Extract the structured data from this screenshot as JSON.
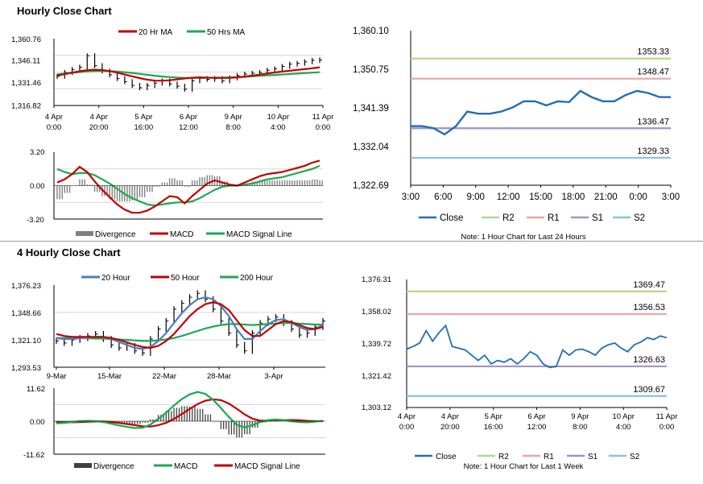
{
  "sections": [
    {
      "title": "Hourly Close Chart"
    },
    {
      "title": "4 Hourly Close Chart"
    }
  ],
  "chart_data": [
    {
      "id": "hourly_price",
      "type": "line",
      "title": "",
      "ylim": [
        1316.82,
        1360.76
      ],
      "yticks": [
        "1,360.76",
        "1,346.11",
        "1,331.46",
        "1,316.82"
      ],
      "xticks": [
        [
          "4 Apr",
          "0:00"
        ],
        [
          "4 Apr",
          "20:00"
        ],
        [
          "5 Apr",
          "16:00"
        ],
        [
          "6 Apr",
          "12:00"
        ],
        [
          "9 Apr",
          "8:00"
        ],
        [
          "10 Apr",
          "4:00"
        ],
        [
          "11 Apr",
          "0:00"
        ]
      ],
      "legend": [
        "20 Hr MA",
        "50 Hrs MA"
      ],
      "colors": {
        "price": "#000000",
        "ma20": "#c00000",
        "ma50": "#1aaa55"
      },
      "series": [
        {
          "name": "20 Hr MA",
          "values": [
            1336.5,
            1337.4,
            1338.4,
            1339.3,
            1340.0,
            1340.3,
            1340.1,
            1339.4,
            1338.4,
            1337.2,
            1336.0,
            1334.8,
            1333.8,
            1333.2,
            1333.1,
            1333.4,
            1334.0,
            1334.6,
            1335.1,
            1335.3,
            1335.2,
            1335.0,
            1334.9,
            1335.0,
            1335.3,
            1335.8,
            1336.4,
            1337.1,
            1337.8,
            1338.5,
            1339.1,
            1339.7,
            1340.2,
            1340.7,
            1341.3,
            1341.9
          ]
        },
        {
          "name": "50 Hrs MA",
          "values": [
            1337.3,
            1337.8,
            1338.3,
            1338.8,
            1339.2,
            1339.4,
            1339.5,
            1339.4,
            1339.1,
            1338.7,
            1338.2,
            1337.6,
            1337.0,
            1336.4,
            1335.9,
            1335.5,
            1335.2,
            1335.0,
            1334.9,
            1334.9,
            1335.0,
            1335.1,
            1335.2,
            1335.3,
            1335.5,
            1335.7,
            1336.0,
            1336.3,
            1336.6,
            1336.9,
            1337.2,
            1337.5,
            1337.8,
            1338.1,
            1338.4,
            1338.7
          ]
        },
        {
          "name": "Close",
          "values": [
            1336.0,
            1338.5,
            1340.5,
            1342.0,
            1349.5,
            1343.0,
            1339.5,
            1337.0,
            1334.5,
            1332.5,
            1330.0,
            1328.5,
            1330.0,
            1331.5,
            1333.0,
            1331.0,
            1329.5,
            1327.5,
            1333.0,
            1334.5,
            1334.0,
            1334.5,
            1333.0,
            1335.0,
            1336.5,
            1337.5,
            1338.0,
            1338.5,
            1340.0,
            1341.0,
            1342.5,
            1344.0,
            1344.5,
            1345.5,
            1346.5,
            1346.8
          ]
        }
      ]
    },
    {
      "id": "hourly_macd",
      "type": "line",
      "title": "",
      "ylim": [
        -3.2,
        3.2
      ],
      "yticks": [
        "3.20",
        "0.00",
        "-3.20"
      ],
      "legend": [
        "Divergence",
        "MACD",
        "MACD Signal Line"
      ],
      "colors": {
        "divergence": "#808080",
        "macd": "#c00000",
        "signal": "#1aaa55"
      },
      "series": [
        {
          "name": "MACD",
          "values": [
            0.3,
            0.6,
            1.1,
            1.8,
            1.3,
            0.4,
            -0.4,
            -1.1,
            -1.8,
            -2.3,
            -2.6,
            -2.6,
            -2.4,
            -2.0,
            -1.5,
            -1.0,
            -1.1,
            -1.7,
            -1.0,
            -0.4,
            0.2,
            0.5,
            0.3,
            0.1,
            0.0,
            0.3,
            0.6,
            0.9,
            1.1,
            1.2,
            1.3,
            1.5,
            1.7,
            1.9,
            2.2,
            2.4
          ]
        },
        {
          "name": "MACD Signal Line",
          "values": [
            1.6,
            1.3,
            1.1,
            1.2,
            1.2,
            1.0,
            0.6,
            0.2,
            -0.3,
            -0.8,
            -1.2,
            -1.5,
            -1.8,
            -1.9,
            -1.8,
            -1.7,
            -1.6,
            -1.6,
            -1.5,
            -1.2,
            -0.8,
            -0.4,
            -0.1,
            0.0,
            0.0,
            0.1,
            0.2,
            0.4,
            0.6,
            0.7,
            0.8,
            1.0,
            1.2,
            1.4,
            1.6,
            1.9
          ]
        },
        {
          "name": "Divergence",
          "values": [
            -1.3,
            -0.7,
            0.0,
            0.6,
            0.1,
            -0.6,
            -1.0,
            -1.3,
            -1.5,
            -1.5,
            -1.4,
            -1.1,
            -0.6,
            -0.1,
            0.3,
            0.7,
            0.5,
            -0.1,
            0.5,
            0.8,
            1.0,
            0.9,
            0.4,
            0.1,
            0.0,
            0.2,
            0.4,
            0.5,
            0.5,
            0.5,
            0.5,
            0.5,
            0.5,
            0.5,
            0.6,
            0.5
          ]
        }
      ]
    },
    {
      "id": "hourly_levels",
      "type": "line",
      "title": "",
      "ylim": [
        1322.69,
        1360.1
      ],
      "yticks": [
        "1,360.10",
        "1,350.75",
        "1,341.39",
        "1,332.04",
        "1,322.69"
      ],
      "xticks": [
        "3:00",
        "6:00",
        "9:00",
        "12:00",
        "15:00",
        "18:00",
        "21:00",
        "0:00",
        "3:00"
      ],
      "legend": [
        "Close",
        "R2",
        "R1",
        "S1",
        "S2"
      ],
      "note": "Note: 1 Hour Chart for Last 24 Hours",
      "colors": {
        "close": "#1f6fb5",
        "R2": "#b5d98a",
        "R1": "#e8a6a6",
        "S1": "#a391c9",
        "S2": "#86c5d8"
      },
      "levels": [
        {
          "name": "R2",
          "value": 1353.33,
          "label": "1353.33"
        },
        {
          "name": "R1",
          "value": 1348.47,
          "label": "1348.47"
        },
        {
          "name": "S1",
          "value": 1336.47,
          "label": "1336.47"
        },
        {
          "name": "S2",
          "value": 1329.33,
          "label": "1329.33"
        }
      ],
      "series": [
        {
          "name": "Close",
          "values": [
            1337.0,
            1337.0,
            1336.5,
            1335.0,
            1337.0,
            1340.5,
            1340.0,
            1340.0,
            1340.5,
            1341.5,
            1343.0,
            1343.0,
            1342.0,
            1343.0,
            1342.8,
            1345.5,
            1344.0,
            1343.0,
            1343.0,
            1344.5,
            1345.5,
            1345.0,
            1344.0,
            1344.0
          ]
        }
      ]
    },
    {
      "id": "four_hourly_price",
      "type": "line",
      "title": "",
      "ylim": [
        1293.53,
        1376.23
      ],
      "yticks": [
        "1,376.23",
        "1,348.66",
        "1,321.10",
        "1,293.53"
      ],
      "xticks": [
        "9-Mar",
        "15-Mar",
        "22-Mar",
        "28-Mar",
        "3-Apr"
      ],
      "legend": [
        "20 Hour",
        "50 Hour",
        "200 Hour"
      ],
      "colors": {
        "price": "#000000",
        "h20": "#4a7fc1",
        "h50": "#c00000",
        "h200": "#1aaa55"
      },
      "series": [
        {
          "name": "20 Hour",
          "values": [
            1323.0,
            1322.0,
            1322.0,
            1323.0,
            1323.5,
            1324.0,
            1324.0,
            1322.0,
            1319.0,
            1316.0,
            1313.0,
            1312.0,
            1314.0,
            1320.0,
            1328.0,
            1338.0,
            1348.0,
            1356.0,
            1362.0,
            1364.0,
            1362.0,
            1355.0,
            1345.0,
            1332.0,
            1322.0,
            1322.0,
            1330.0,
            1337.0,
            1341.0,
            1342.0,
            1338.0,
            1334.0,
            1331.0,
            1332.0,
            1336.0
          ]
        },
        {
          "name": "50 Hour",
          "values": [
            1327.0,
            1325.0,
            1324.0,
            1324.0,
            1324.0,
            1324.0,
            1324.0,
            1323.0,
            1321.0,
            1318.5,
            1316.0,
            1314.0,
            1313.0,
            1315.0,
            1320.0,
            1327.0,
            1336.0,
            1345.0,
            1352.0,
            1357.0,
            1359.0,
            1357.0,
            1351.0,
            1341.0,
            1331.0,
            1325.0,
            1325.0,
            1331.0,
            1337.0,
            1340.0,
            1339.0,
            1336.0,
            1333.0,
            1332.0,
            1334.0
          ]
        },
        {
          "name": "200 Hour",
          "values": [
            1323.0,
            1323.0,
            1323.0,
            1323.0,
            1323.0,
            1322.5,
            1322.5,
            1322.0,
            1321.5,
            1321.0,
            1320.5,
            1320.0,
            1320.0,
            1320.5,
            1321.5,
            1323.0,
            1325.0,
            1327.5,
            1330.0,
            1332.5,
            1334.5,
            1336.0,
            1337.0,
            1337.0,
            1336.5,
            1336.0,
            1336.5,
            1337.0,
            1337.5,
            1338.0,
            1338.0,
            1337.5,
            1337.0,
            1336.5,
            1336.5
          ]
        },
        {
          "name": "Close",
          "values": [
            1320.0,
            1318.0,
            1321.0,
            1323.0,
            1325.0,
            1327.0,
            1322.0,
            1316.0,
            1313.0,
            1315.0,
            1310.0,
            1308.0,
            1322.0,
            1332.0,
            1340.0,
            1352.0,
            1358.0,
            1364.0,
            1368.0,
            1362.0,
            1352.0,
            1340.0,
            1328.0,
            1316.0,
            1310.0,
            1328.0,
            1338.0,
            1342.0,
            1344.0,
            1338.0,
            1332.0,
            1326.0,
            1328.0,
            1334.0,
            1340.0
          ]
        }
      ]
    },
    {
      "id": "four_hourly_macd",
      "type": "line",
      "title": "",
      "ylim": [
        -11.62,
        11.62
      ],
      "yticks": [
        "11.62",
        "0.00",
        "-11.62"
      ],
      "legend": [
        "Divergence",
        "MACD",
        "MACD Signal Line"
      ],
      "colors": {
        "divergence": "#808080",
        "macd": "#1aaa55",
        "signal": "#c00000"
      },
      "series": [
        {
          "name": "MACD",
          "values": [
            -0.8,
            -0.6,
            -0.3,
            0.0,
            0.1,
            0.0,
            -0.3,
            -0.9,
            -1.5,
            -2.0,
            -2.4,
            -2.3,
            -1.2,
            0.8,
            3.0,
            5.5,
            7.8,
            9.4,
            10.3,
            9.6,
            7.5,
            4.6,
            1.5,
            -1.3,
            -2.2,
            -1.4,
            -0.3,
            0.4,
            0.6,
            0.4,
            0.0,
            -0.3,
            -0.4,
            -0.2,
            0.2
          ]
        },
        {
          "name": "MACD Signal Line",
          "values": [
            -0.3,
            -0.4,
            -0.4,
            -0.3,
            -0.2,
            -0.1,
            -0.1,
            -0.3,
            -0.6,
            -1.0,
            -1.4,
            -1.8,
            -1.9,
            -1.4,
            -0.6,
            0.8,
            2.5,
            4.3,
            6.0,
            7.2,
            7.7,
            7.4,
            6.2,
            4.4,
            2.4,
            0.9,
            0.2,
            0.2,
            0.3,
            0.4,
            0.4,
            0.3,
            0.1,
            0.0,
            0.0
          ]
        },
        {
          "name": "Divergence",
          "values": [
            -0.5,
            -0.2,
            0.1,
            0.3,
            0.3,
            0.1,
            -0.2,
            -0.6,
            -0.9,
            -1.0,
            -1.0,
            -0.5,
            0.7,
            2.2,
            3.6,
            4.7,
            5.3,
            5.1,
            4.3,
            2.4,
            -0.2,
            -2.8,
            -4.7,
            -5.7,
            -4.6,
            -2.3,
            -0.5,
            0.2,
            0.3,
            0.0,
            -0.4,
            -0.6,
            -0.5,
            -0.2,
            0.2
          ]
        }
      ]
    },
    {
      "id": "four_hourly_levels",
      "type": "line",
      "title": "",
      "ylim": [
        1303.12,
        1376.31
      ],
      "yticks": [
        "1,376.31",
        "1,358.02",
        "1,339.72",
        "1,321.42",
        "1,303.12"
      ],
      "xticks": [
        [
          "4 Apr",
          "0:00"
        ],
        [
          "4 Apr",
          "20:00"
        ],
        [
          "5 Apr",
          "16:00"
        ],
        [
          "6 Apr",
          "12:00"
        ],
        [
          "9 Apr",
          "8:00"
        ],
        [
          "10 Apr",
          "4:00"
        ],
        [
          "11 Apr",
          "0:00"
        ]
      ],
      "legend": [
        "Close",
        "R2",
        "R1",
        "S1",
        "S2"
      ],
      "note": "Note: 1 Hour Chart for Last 1 Week",
      "colors": {
        "close": "#1f6fb5",
        "R2": "#b5d98a",
        "R1": "#e8a6a6",
        "S1": "#a391c9",
        "S2": "#86c5d8"
      },
      "levels": [
        {
          "name": "R2",
          "value": 1369.47,
          "label": "1369.47"
        },
        {
          "name": "R1",
          "value": 1356.53,
          "label": "1356.53"
        },
        {
          "name": "S1",
          "value": 1326.63,
          "label": "1326.63"
        },
        {
          "name": "S2",
          "value": 1309.67,
          "label": "1309.67"
        }
      ],
      "series": [
        {
          "name": "Close",
          "values": [
            1336.5,
            1338.0,
            1340.0,
            1347.0,
            1341.0,
            1346.0,
            1350.0,
            1338.0,
            1337.0,
            1336.0,
            1333.0,
            1330.0,
            1333.0,
            1328.0,
            1330.0,
            1329.0,
            1331.0,
            1328.0,
            1331.0,
            1335.0,
            1333.0,
            1328.0,
            1326.0,
            1326.5,
            1336.0,
            1333.0,
            1336.0,
            1336.5,
            1335.0,
            1333.0,
            1337.0,
            1339.0,
            1340.0,
            1337.0,
            1335.0,
            1339.0,
            1340.5,
            1343.0,
            1342.0,
            1344.0,
            1343.0
          ]
        }
      ]
    }
  ]
}
